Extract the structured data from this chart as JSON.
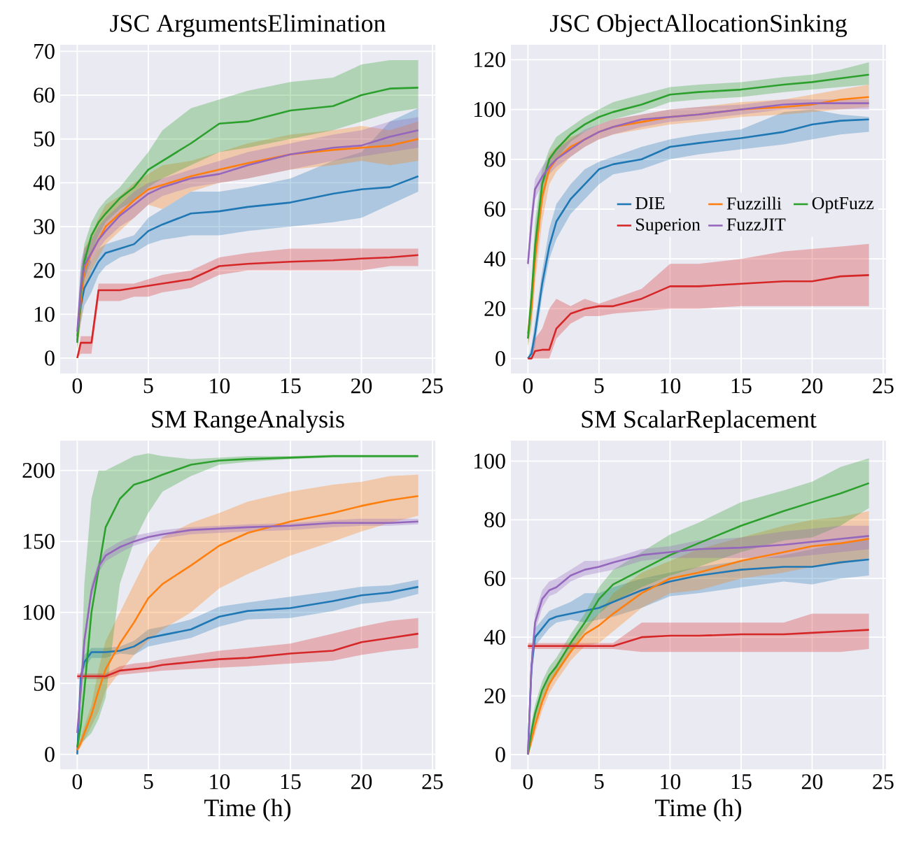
{
  "chart_data": [
    {
      "type": "line",
      "title": "JSC ArgumentsElimination",
      "x": [
        0,
        0.25,
        0.5,
        1,
        1.5,
        2,
        3,
        4,
        5,
        6,
        8,
        10,
        12,
        15,
        18,
        20,
        22,
        24
      ],
      "xlim": [
        -1.2,
        25.2
      ],
      "ylim": [
        -3.5,
        71.5
      ],
      "xticks": [
        0,
        5,
        10,
        15,
        20,
        25
      ],
      "yticks": [
        0,
        10,
        20,
        30,
        40,
        50,
        60,
        70
      ],
      "grid": true,
      "legend": false,
      "series": [
        {
          "color": "#1f77b4",
          "values": [
            5,
            12,
            16,
            19,
            22,
            24,
            25,
            26,
            29,
            30.5,
            33,
            33.5,
            34.5,
            35.5,
            37.5,
            38.5,
            39,
            41.5
          ],
          "lower": [
            3,
            8,
            12,
            15,
            19,
            21,
            23,
            24,
            26,
            27,
            28,
            28,
            29,
            30,
            31,
            32,
            35,
            38
          ],
          "upper": [
            8,
            20,
            24,
            22,
            25,
            26,
            27,
            28,
            32,
            34,
            38,
            38,
            39,
            41,
            45,
            47,
            54,
            57
          ]
        },
        {
          "color": "#ff7f0e",
          "values": [
            4,
            13,
            20,
            24,
            27,
            30,
            33,
            36,
            38.5,
            39.5,
            41.5,
            43,
            44.5,
            46.5,
            47.5,
            48,
            48.5,
            50
          ],
          "lower": [
            2,
            8,
            15,
            20,
            23,
            26,
            29,
            32,
            35,
            34,
            38,
            40,
            41,
            43,
            44,
            45,
            44,
            45
          ],
          "upper": [
            7,
            18,
            25,
            28,
            32,
            35,
            37,
            40,
            42,
            44,
            45,
            47,
            49,
            51,
            52,
            53,
            52,
            54
          ]
        },
        {
          "color": "#2ca02c",
          "values": [
            3.5,
            15,
            22,
            28,
            31,
            33,
            36.5,
            39,
            43,
            45,
            49,
            53.5,
            54,
            56.5,
            57.5,
            60,
            61.5,
            61.7
          ],
          "lower": [
            2,
            10,
            18,
            24,
            28,
            31,
            34,
            36,
            39,
            41,
            44,
            47,
            48,
            50,
            52,
            54,
            56,
            57
          ],
          "upper": [
            6,
            20,
            26,
            31,
            34,
            36,
            39,
            43,
            47,
            52,
            57,
            59,
            61,
            63,
            64,
            67,
            68,
            68
          ]
        },
        {
          "color": "#d62728",
          "values": [
            0,
            3.5,
            3.5,
            3.5,
            15.5,
            15.5,
            15.5,
            16,
            16.5,
            17,
            18,
            21,
            21.5,
            22,
            22.3,
            22.7,
            23,
            23.5
          ],
          "lower": [
            0,
            1,
            1,
            1,
            13,
            13,
            13,
            14,
            14,
            15,
            16,
            19,
            20,
            20,
            20,
            20,
            21,
            21
          ],
          "upper": [
            0,
            5,
            5,
            5,
            17,
            17,
            17,
            17,
            18,
            19,
            20,
            23,
            24,
            25,
            25,
            25,
            25,
            25
          ]
        },
        {
          "color": "#9467bd",
          "values": [
            6,
            16,
            21,
            24,
            27,
            29,
            32.5,
            35,
            37.5,
            39,
            41,
            42,
            44,
            46.5,
            48,
            48.5,
            50.5,
            52
          ],
          "lower": [
            4,
            12,
            18,
            22,
            25,
            27,
            30,
            32,
            35,
            37,
            39,
            40,
            41,
            43,
            45,
            46,
            47,
            48
          ],
          "upper": [
            9,
            22,
            25,
            27,
            30,
            32,
            35,
            38,
            40,
            41,
            43,
            45,
            47,
            49,
            51,
            52,
            54,
            55
          ]
        }
      ]
    },
    {
      "type": "line",
      "title": "JSC ObjectAllocationSinking",
      "x": [
        0,
        0.25,
        0.5,
        1,
        1.5,
        2,
        3,
        4,
        5,
        6,
        8,
        10,
        12,
        15,
        18,
        20,
        22,
        24
      ],
      "xlim": [
        -1.2,
        25.2
      ],
      "ylim": [
        -6,
        126
      ],
      "xticks": [
        0,
        5,
        10,
        15,
        20,
        25
      ],
      "yticks": [
        0,
        20,
        40,
        60,
        80,
        100,
        120
      ],
      "grid": true,
      "legend": "right",
      "series": [
        {
          "name": "DIE",
          "color": "#1f77b4",
          "values": [
            0,
            2,
            10,
            30,
            45,
            55,
            64,
            70,
            76,
            78,
            80,
            85,
            86.5,
            88.5,
            91,
            94,
            95.5,
            96
          ],
          "lower": [
            0,
            0,
            5,
            25,
            40,
            48,
            58,
            64,
            70,
            74,
            76,
            80,
            82,
            84,
            86,
            88,
            90,
            91
          ],
          "upper": [
            0,
            5,
            15,
            35,
            52,
            62,
            70,
            76,
            79,
            81,
            85,
            88,
            90,
            92,
            99,
            100,
            98,
            97
          ]
        },
        {
          "name": "Fuzzilli",
          "color": "#ff7f0e",
          "values": [
            10,
            20,
            40,
            65,
            76,
            80,
            85,
            88,
            91,
            93,
            95,
            97,
            98,
            100,
            101,
            102,
            104,
            105
          ],
          "lower": [
            5,
            12,
            30,
            55,
            70,
            75,
            81,
            85,
            88,
            90,
            92,
            94,
            95,
            97,
            98,
            99,
            100,
            101
          ],
          "upper": [
            15,
            28,
            50,
            72,
            82,
            85,
            89,
            91,
            94,
            96,
            98,
            100,
            101,
            103,
            104,
            106,
            108,
            110
          ]
        },
        {
          "name": "OptFuzz",
          "color": "#2ca02c",
          "values": [
            8,
            25,
            45,
            70,
            80,
            84,
            90,
            94,
            97,
            99,
            102,
            106,
            107,
            108,
            110,
            111,
            112.5,
            114
          ],
          "lower": [
            5,
            15,
            35,
            62,
            75,
            80,
            87,
            91,
            94,
            96,
            99,
            103,
            104,
            105,
            107,
            108,
            109,
            110
          ],
          "upper": [
            12,
            30,
            55,
            76,
            84,
            89,
            93,
            97,
            100,
            103,
            106,
            109,
            110,
            111,
            113,
            114,
            116,
            119
          ]
        },
        {
          "name": "Superion",
          "color": "#d62728",
          "values": [
            0,
            0,
            3,
            3.5,
            3.5,
            12,
            18,
            20,
            21,
            21,
            24,
            29,
            29,
            30,
            31,
            31,
            33,
            33.5
          ],
          "lower": [
            0,
            0,
            0,
            0,
            0,
            8,
            14,
            17,
            17,
            18,
            19,
            20,
            20,
            21,
            21,
            21,
            21,
            21
          ],
          "upper": [
            0,
            0,
            8,
            12,
            20,
            24,
            21,
            24,
            22,
            24,
            28,
            38,
            38,
            40,
            43,
            44,
            45,
            46
          ]
        },
        {
          "name": "FuzzJIT",
          "color": "#9467bd",
          "values": [
            38,
            55,
            68,
            73,
            77,
            80,
            84,
            88,
            91,
            93,
            96,
            97,
            98,
            100,
            102,
            102.5,
            102.5,
            102.5
          ],
          "lower": [
            35,
            50,
            64,
            70,
            74,
            77,
            81,
            85,
            88,
            90,
            93,
            95,
            96,
            98,
            100,
            100,
            100,
            100
          ],
          "upper": [
            42,
            60,
            72,
            77,
            81,
            84,
            88,
            92,
            94,
            96,
            98,
            100,
            101,
            102,
            104,
            104,
            104,
            104
          ]
        }
      ]
    },
    {
      "type": "line",
      "title": "SM RangeAnalysis",
      "xlabel": "Time (h)",
      "x": [
        0,
        0.25,
        0.5,
        1,
        1.5,
        2,
        3,
        4,
        5,
        6,
        8,
        10,
        12,
        15,
        18,
        20,
        22,
        24
      ],
      "xlim": [
        -1.2,
        25.2
      ],
      "ylim": [
        -10.5,
        221
      ],
      "xticks": [
        0,
        5,
        10,
        15,
        20,
        25
      ],
      "yticks": [
        0,
        50,
        100,
        150,
        200
      ],
      "grid": true,
      "legend": false,
      "series": [
        {
          "color": "#1f77b4",
          "values": [
            0,
            55,
            65,
            72,
            72,
            72,
            73,
            76,
            82,
            84,
            88,
            97,
            101,
            103,
            108,
            112,
            114,
            118
          ],
          "lower": [
            0,
            50,
            60,
            68,
            68,
            68,
            71,
            70,
            76,
            78,
            82,
            90,
            95,
            96,
            101,
            106,
            108,
            113
          ],
          "upper": [
            5,
            60,
            70,
            75,
            75,
            75,
            76,
            80,
            88,
            90,
            95,
            104,
            107,
            111,
            115,
            118,
            119,
            123
          ]
        },
        {
          "color": "#ff7f0e",
          "values": [
            3,
            8,
            15,
            28,
            45,
            60,
            78,
            93,
            110,
            120,
            133,
            147,
            156,
            164,
            170,
            175,
            179,
            182
          ],
          "lower": [
            2,
            5,
            10,
            20,
            30,
            45,
            58,
            70,
            80,
            88,
            100,
            117,
            127,
            140,
            150,
            157,
            163,
            168
          ],
          "upper": [
            5,
            12,
            20,
            35,
            60,
            80,
            100,
            120,
            140,
            153,
            163,
            170,
            178,
            185,
            190,
            192,
            196,
            197
          ]
        },
        {
          "color": "#2ca02c",
          "values": [
            5,
            20,
            45,
            100,
            130,
            160,
            180,
            190,
            193,
            197,
            204,
            207,
            208,
            209,
            210,
            210,
            210,
            210
          ],
          "lower": [
            2,
            8,
            10,
            15,
            25,
            40,
            120,
            150,
            170,
            185,
            196,
            204,
            206,
            208,
            209,
            209,
            209,
            209
          ],
          "upper": [
            10,
            50,
            120,
            180,
            200,
            200,
            205,
            210,
            212,
            210,
            208,
            209,
            210,
            210,
            211,
            211,
            211,
            211
          ]
        },
        {
          "color": "#d62728",
          "values": [
            55,
            55,
            55,
            55,
            55,
            55,
            59,
            60,
            61,
            63,
            65,
            67,
            68,
            71,
            73,
            79,
            82,
            85
          ],
          "lower": [
            53,
            53,
            53,
            53,
            53,
            53,
            56,
            57,
            58,
            59,
            60,
            61,
            62,
            64,
            66,
            70,
            73,
            75
          ],
          "upper": [
            57,
            57,
            57,
            57,
            57,
            57,
            62,
            64,
            65,
            67,
            70,
            73,
            75,
            78,
            85,
            90,
            94,
            96
          ]
        },
        {
          "color": "#9467bd",
          "values": [
            15,
            45,
            80,
            115,
            132,
            140,
            146,
            150,
            153,
            155,
            158,
            159,
            160,
            161,
            163,
            163,
            163,
            164
          ],
          "lower": [
            10,
            40,
            75,
            110,
            128,
            136,
            142,
            147,
            150,
            152,
            155,
            156,
            157,
            158,
            160,
            161,
            161,
            162
          ],
          "upper": [
            20,
            50,
            85,
            120,
            136,
            144,
            150,
            154,
            156,
            158,
            160,
            161,
            162,
            163,
            165,
            166,
            166,
            166
          ]
        }
      ]
    },
    {
      "type": "line",
      "title": "SM ScalarReplacement",
      "xlabel": "Time (h)",
      "x": [
        0,
        0.25,
        0.5,
        1,
        1.5,
        2,
        3,
        4,
        5,
        6,
        8,
        10,
        12,
        15,
        18,
        20,
        22,
        24
      ],
      "xlim": [
        -1.2,
        25.2
      ],
      "ylim": [
        -5,
        107
      ],
      "xticks": [
        0,
        5,
        10,
        15,
        20,
        25
      ],
      "yticks": [
        0,
        20,
        40,
        60,
        80,
        100
      ],
      "grid": true,
      "legend": false,
      "series": [
        {
          "color": "#1f77b4",
          "values": [
            0,
            30,
            40,
            43,
            46,
            47,
            48,
            49,
            50,
            52,
            56,
            59,
            61,
            63,
            64,
            64,
            65.5,
            66.5
          ],
          "lower": [
            0,
            25,
            37,
            40,
            43,
            45,
            46,
            45,
            46,
            47,
            50,
            54,
            55,
            57,
            59,
            58,
            60,
            61
          ],
          "upper": [
            3,
            35,
            43,
            46,
            49,
            50,
            52,
            55,
            55,
            57,
            60,
            62,
            64,
            66,
            68,
            70,
            72,
            74
          ]
        },
        {
          "color": "#ff7f0e",
          "values": [
            0,
            5,
            10,
            18,
            24,
            28,
            35,
            41,
            44,
            48,
            55,
            60,
            62,
            66,
            69,
            71,
            72,
            73.5
          ],
          "lower": [
            0,
            3,
            7,
            15,
            21,
            25,
            32,
            37,
            38,
            42,
            50,
            55,
            56,
            60,
            62,
            64,
            65,
            67
          ],
          "upper": [
            2,
            8,
            13,
            21,
            27,
            31,
            38,
            44,
            48,
            55,
            62,
            66,
            70,
            74,
            78,
            80,
            81,
            83
          ]
        },
        {
          "color": "#2ca02c",
          "values": [
            0,
            8,
            14,
            22,
            27,
            30,
            38,
            45,
            53,
            58,
            63,
            68,
            72,
            78,
            83,
            86,
            89,
            92.5
          ],
          "lower": [
            0,
            6,
            11,
            19,
            24,
            27,
            35,
            42,
            48,
            52,
            57,
            61,
            64,
            69,
            73,
            74,
            78,
            84
          ],
          "upper": [
            2,
            11,
            17,
            25,
            30,
            33,
            41,
            48,
            57,
            63,
            69,
            75,
            79,
            86,
            90,
            93,
            98,
            101
          ]
        },
        {
          "color": "#d62728",
          "values": [
            37,
            37,
            37,
            37,
            37,
            37,
            37,
            37,
            37,
            37,
            40,
            40.5,
            40.5,
            41,
            41,
            41.5,
            42,
            42.5
          ],
          "lower": [
            36,
            36,
            36,
            36,
            36,
            36,
            36,
            36,
            36,
            36,
            35,
            35,
            35,
            35,
            35,
            35,
            35,
            36
          ],
          "upper": [
            38,
            38,
            38,
            38,
            38,
            38,
            38,
            38,
            38,
            38,
            45,
            45,
            45,
            45,
            45,
            48,
            48,
            48
          ]
        },
        {
          "color": "#9467bd",
          "values": [
            0,
            30,
            45,
            53,
            56,
            57,
            61,
            63,
            64,
            65.5,
            68,
            69,
            70,
            70.5,
            71.5,
            72.5,
            73.5,
            74.5
          ],
          "lower": [
            0,
            25,
            42,
            50,
            54,
            55,
            59,
            61,
            62,
            63,
            66,
            67,
            67,
            67,
            67,
            68,
            69,
            70
          ],
          "upper": [
            3,
            35,
            48,
            56,
            59,
            60,
            63,
            66,
            66,
            67,
            70,
            71,
            73,
            74,
            76,
            77,
            78,
            78
          ]
        }
      ]
    }
  ]
}
